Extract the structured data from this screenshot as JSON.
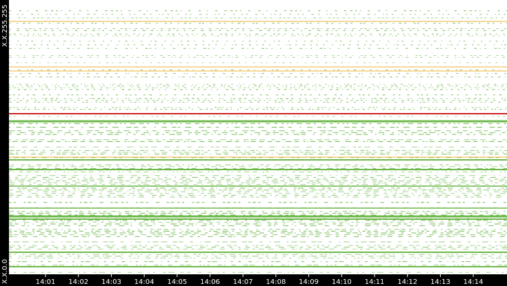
{
  "y_axis": {
    "top_label": "X.X.255.255",
    "bottom_label": "X.X.0.0"
  },
  "time_axis": {
    "labels": [
      "14:01",
      "14:02",
      "14:03",
      "14:04",
      "14:05",
      "14:06",
      "14:07",
      "14:08",
      "14:09",
      "14:10",
      "14:11",
      "14:12",
      "14:13",
      "14:14"
    ]
  }
}
